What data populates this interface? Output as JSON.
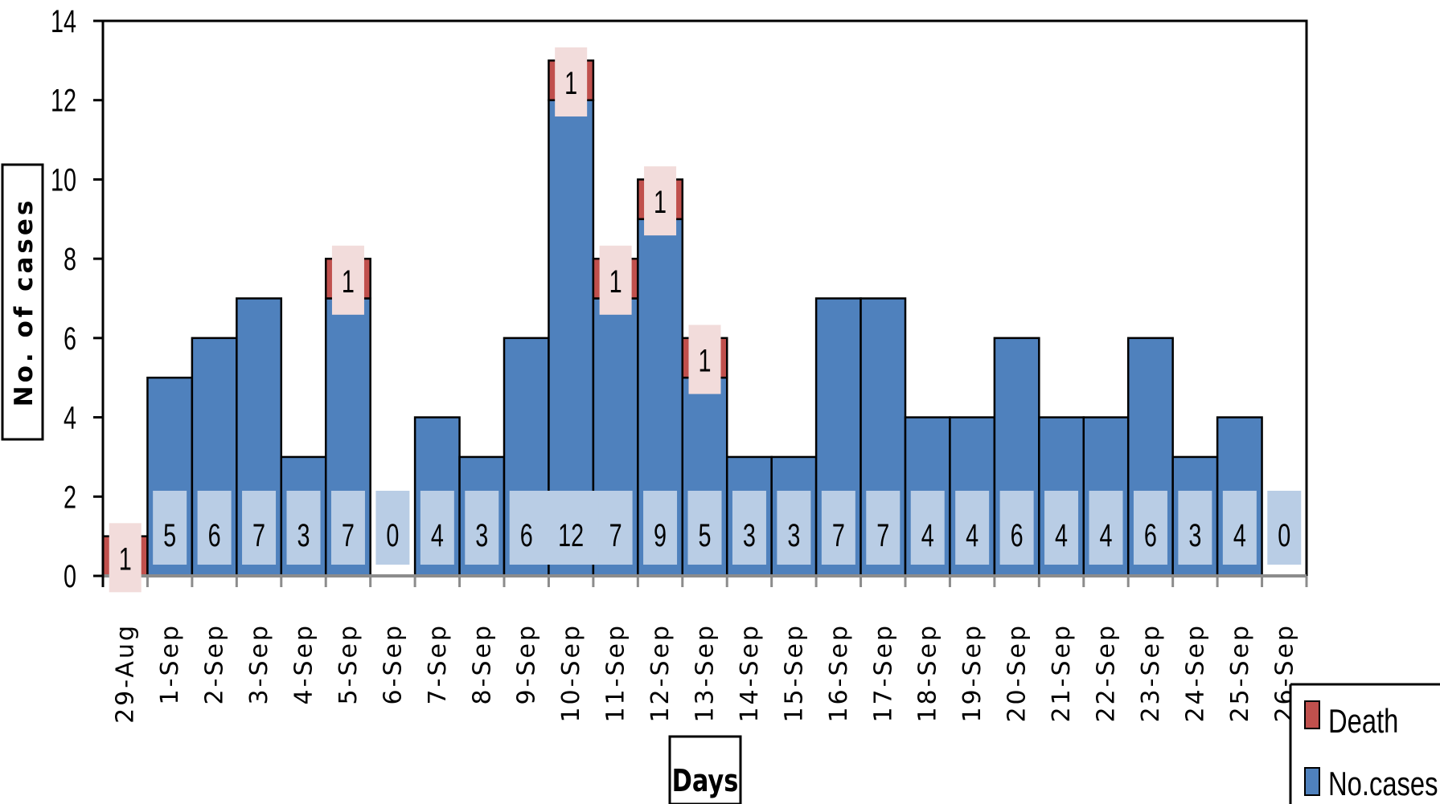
{
  "chart_data": {
    "type": "bar",
    "stacked": true,
    "categories": [
      "29-Aug",
      "1-Sep",
      "2-Sep",
      "3-Sep",
      "4-Sep",
      "5-Sep",
      "6-Sep",
      "7-Sep",
      "8-Sep",
      "9-Sep",
      "10-Sep",
      "11-Sep",
      "12-Sep",
      "13-Sep",
      "14-Sep",
      "15-Sep",
      "16-Sep",
      "17-Sep",
      "18-Sep",
      "19-Sep",
      "20-Sep",
      "21-Sep",
      "22-Sep",
      "23-Sep",
      "24-Sep",
      "25-Sep",
      "26-Sep"
    ],
    "series": [
      {
        "name": "No.cases",
        "values": [
          0,
          5,
          6,
          7,
          3,
          7,
          0,
          4,
          3,
          6,
          12,
          7,
          9,
          5,
          3,
          3,
          7,
          7,
          4,
          4,
          6,
          4,
          4,
          6,
          3,
          4,
          0
        ]
      },
      {
        "name": "Death",
        "values": [
          1,
          0,
          0,
          0,
          0,
          1,
          0,
          0,
          0,
          0,
          1,
          1,
          1,
          1,
          0,
          0,
          0,
          0,
          0,
          0,
          0,
          0,
          0,
          0,
          0,
          0,
          0
        ]
      }
    ],
    "title": "",
    "xlabel": "Days",
    "ylabel": "No. of cases",
    "ylim": [
      0,
      14
    ],
    "yticks": [
      "0",
      "2",
      "4",
      "6",
      "8",
      "10",
      "12",
      "14"
    ],
    "grid": false,
    "legend": "bottom-right",
    "colors": {
      "No.cases": "#4f81bd",
      "Death": "#c0504d",
      "cases_label_bg": "#b9cde5",
      "death_label_bg": "#f2dcdb"
    }
  }
}
